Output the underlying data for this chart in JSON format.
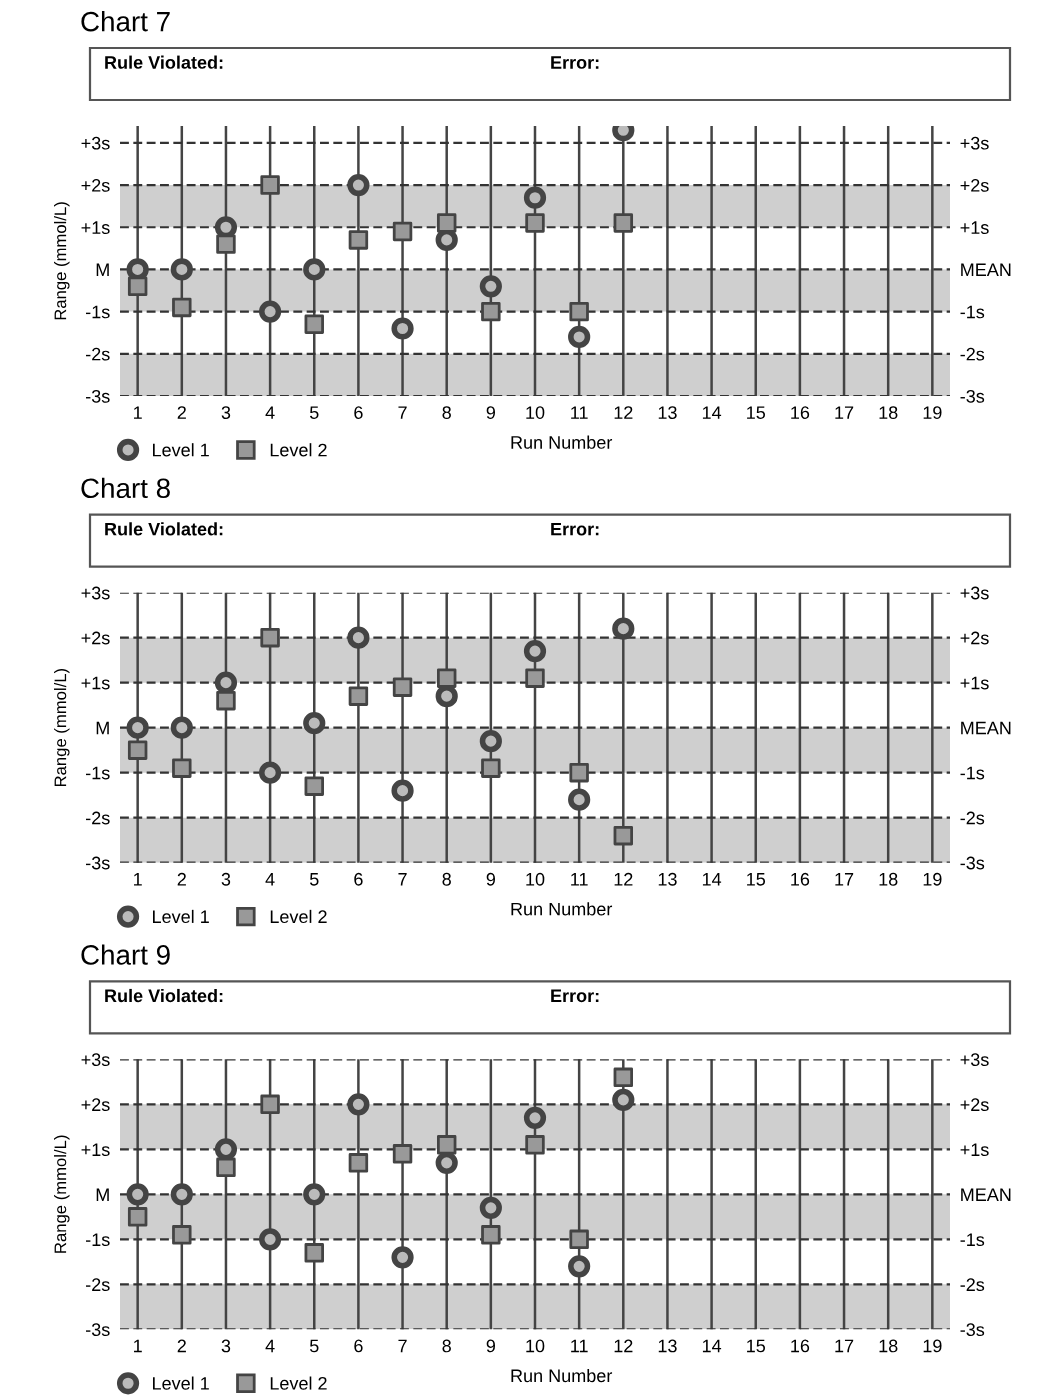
{
  "chart_data": [
    {
      "type": "scatter",
      "title": "Chart 7",
      "annotations": [
        "Rule Violated:",
        "Error:"
      ],
      "ylabel": "Range (mmol/L)",
      "xlabel": "Run Number",
      "categories": [
        "1",
        "2",
        "3",
        "4",
        "5",
        "6",
        "7",
        "8",
        "9",
        "10",
        "11",
        "12",
        "13",
        "14",
        "15",
        "16",
        "17",
        "18",
        "19"
      ],
      "series": [
        {
          "name": "Level 1",
          "color": "#444444",
          "marker": "circle",
          "values": [
            0,
            0,
            1.0,
            -1.0,
            0,
            2.0,
            -1.4,
            0.7,
            -0.4,
            1.7,
            -1.6,
            3.3,
            null,
            null,
            null,
            null,
            null,
            null,
            null
          ]
        },
        {
          "name": "Level 2",
          "color": "#999999",
          "marker": "square",
          "values": [
            -0.4,
            -0.9,
            0.6,
            2.0,
            -1.3,
            0.7,
            0.9,
            1.1,
            -1.0,
            1.1,
            -1.0,
            1.1,
            null,
            null,
            null,
            null,
            null,
            null,
            null
          ]
        }
      ],
      "ylim": [
        -3,
        3.4
      ],
      "yticks": [
        {
          "value": -3,
          "label": "-3s"
        },
        {
          "value": -2,
          "label": "-2s"
        },
        {
          "value": -1,
          "label": "-1s"
        },
        {
          "value": 0,
          "label": "M"
        },
        {
          "value": 1,
          "label": "+1s"
        },
        {
          "value": 2,
          "label": "+2s"
        },
        {
          "value": 3,
          "label": "+3s"
        }
      ],
      "y2lim": [
        -3,
        3.4
      ],
      "y2ticks": [
        {
          "value": -3,
          "label": "-3s"
        },
        {
          "value": -2,
          "label": "-2s"
        },
        {
          "value": -1,
          "label": "-1s"
        },
        {
          "value": 0,
          "label": "MEAN"
        },
        {
          "value": 1,
          "label": "+1s"
        },
        {
          "value": 2,
          "label": "+2s"
        },
        {
          "value": 3,
          "label": "+3s"
        }
      ],
      "bands": [
        {
          "axis": "y",
          "from": 1,
          "to": 2,
          "color": "#cfcfcf"
        },
        {
          "axis": "y",
          "from": -1,
          "to": 0,
          "color": "#cfcfcf"
        },
        {
          "axis": "y",
          "from": -3,
          "to": -2,
          "color": "#cfcfcf"
        }
      ],
      "grid": true,
      "legend": "bottom left"
    },
    {
      "type": "scatter",
      "title": "Chart 8",
      "annotations": [
        "Rule Violated:",
        "Error:"
      ],
      "ylabel": "Range (mmol/L)",
      "xlabel": "Run Number",
      "categories": [
        "1",
        "2",
        "3",
        "4",
        "5",
        "6",
        "7",
        "8",
        "9",
        "10",
        "11",
        "12",
        "13",
        "14",
        "15",
        "16",
        "17",
        "18",
        "19"
      ],
      "series": [
        {
          "name": "Level 1",
          "color": "#444444",
          "marker": "circle",
          "values": [
            0,
            0,
            1.0,
            -1.0,
            0.1,
            2.0,
            -1.4,
            0.7,
            -0.3,
            1.7,
            -1.6,
            2.2,
            null,
            null,
            null,
            null,
            null,
            null,
            null
          ]
        },
        {
          "name": "Level 2",
          "color": "#999999",
          "marker": "square",
          "values": [
            -0.5,
            -0.9,
            0.6,
            2.0,
            -1.3,
            0.7,
            0.9,
            1.1,
            -0.9,
            1.1,
            -1.0,
            -2.4,
            null,
            null,
            null,
            null,
            null,
            null,
            null
          ]
        }
      ],
      "ylim": [
        -3,
        3
      ],
      "yticks": [
        {
          "value": -3,
          "label": "-3s"
        },
        {
          "value": -2,
          "label": "-2s"
        },
        {
          "value": -1,
          "label": "-1s"
        },
        {
          "value": 0,
          "label": "M"
        },
        {
          "value": 1,
          "label": "+1s"
        },
        {
          "value": 2,
          "label": "+2s"
        },
        {
          "value": 3,
          "label": "+3s"
        }
      ],
      "y2lim": [
        -3,
        3
      ],
      "y2ticks": [
        {
          "value": -3,
          "label": "-3s"
        },
        {
          "value": -2,
          "label": "-2s"
        },
        {
          "value": -1,
          "label": "-1s"
        },
        {
          "value": 0,
          "label": "MEAN"
        },
        {
          "value": 1,
          "label": "+1s"
        },
        {
          "value": 2,
          "label": "+2s"
        },
        {
          "value": 3,
          "label": "+3s"
        }
      ],
      "bands": [
        {
          "axis": "y",
          "from": 1,
          "to": 2,
          "color": "#cfcfcf"
        },
        {
          "axis": "y",
          "from": -1,
          "to": 0,
          "color": "#cfcfcf"
        },
        {
          "axis": "y",
          "from": -3,
          "to": -2,
          "color": "#cfcfcf"
        }
      ],
      "grid": true,
      "legend": "bottom left"
    },
    {
      "type": "scatter",
      "title": "Chart 9",
      "annotations": [
        "Rule Violated:",
        "Error:"
      ],
      "ylabel": "Range (mmol/L)",
      "xlabel": "Run Number",
      "categories": [
        "1",
        "2",
        "3",
        "4",
        "5",
        "6",
        "7",
        "8",
        "9",
        "10",
        "11",
        "12",
        "13",
        "14",
        "15",
        "16",
        "17",
        "18",
        "19"
      ],
      "series": [
        {
          "name": "Level 1",
          "color": "#444444",
          "marker": "circle",
          "values": [
            0,
            0,
            1.0,
            -1.0,
            0,
            2.0,
            -1.4,
            0.7,
            -0.3,
            1.7,
            -1.6,
            2.1,
            null,
            null,
            null,
            null,
            null,
            null,
            null
          ]
        },
        {
          "name": "Level 2",
          "color": "#999999",
          "marker": "square",
          "values": [
            -0.5,
            -0.9,
            0.6,
            2.0,
            -1.3,
            0.7,
            0.9,
            1.1,
            -0.9,
            1.1,
            -1.0,
            2.6,
            null,
            null,
            null,
            null,
            null,
            null,
            null
          ]
        }
      ],
      "ylim": [
        -3,
        3
      ],
      "yticks": [
        {
          "value": -3,
          "label": "-3s"
        },
        {
          "value": -2,
          "label": "-2s"
        },
        {
          "value": -1,
          "label": "-1s"
        },
        {
          "value": 0,
          "label": "M"
        },
        {
          "value": 1,
          "label": "+1s"
        },
        {
          "value": 2,
          "label": "+2s"
        },
        {
          "value": 3,
          "label": "+3s"
        }
      ],
      "y2lim": [
        -3,
        3
      ],
      "y2ticks": [
        {
          "value": -3,
          "label": "-3s"
        },
        {
          "value": -2,
          "label": "-2s"
        },
        {
          "value": -1,
          "label": "-1s"
        },
        {
          "value": 0,
          "label": "MEAN"
        },
        {
          "value": 1,
          "label": "+1s"
        },
        {
          "value": 2,
          "label": "+2s"
        },
        {
          "value": 3,
          "label": "+3s"
        }
      ],
      "bands": [
        {
          "axis": "y",
          "from": 1,
          "to": 2,
          "color": "#cfcfcf"
        },
        {
          "axis": "y",
          "from": -1,
          "to": 0,
          "color": "#cfcfcf"
        },
        {
          "axis": "y",
          "from": -3,
          "to": -2,
          "color": "#cfcfcf"
        }
      ],
      "grid": true,
      "legend": "bottom left"
    }
  ]
}
